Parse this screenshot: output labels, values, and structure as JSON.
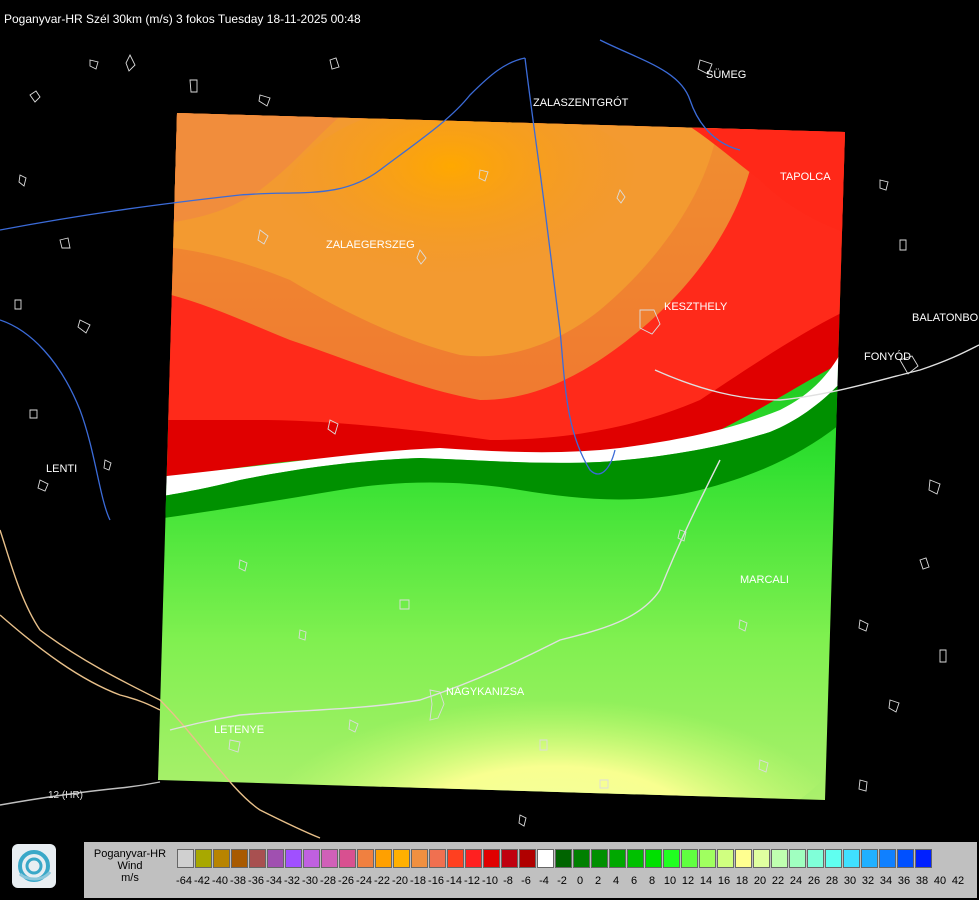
{
  "title": "Poganyvar-HR Szél 30km (m/s) 3 fokos Tuesday 18-11-2025 00:48",
  "cities": [
    {
      "name": "SÜMEG"
    },
    {
      "name": "ZALASZENTGRÓT"
    },
    {
      "name": "TAPOLCA"
    },
    {
      "name": "ZALAEGERSZEG"
    },
    {
      "name": "KESZTHELY"
    },
    {
      "name": "BALATONBO"
    },
    {
      "name": "FONYÓD"
    },
    {
      "name": "LENTI"
    },
    {
      "name": "MARCALI"
    },
    {
      "name": "NAGYKANIZSA"
    },
    {
      "name": "LETENYE"
    }
  ],
  "roads": [
    {
      "label": "12 (HR)"
    }
  ],
  "legend": {
    "line1": "Poganyvar-HR",
    "line2": "Wind",
    "line3": "m/s",
    "colors": [
      "#d0d0d0",
      "#a8a800",
      "#b88400",
      "#a85a00",
      "#a85050",
      "#a050b0",
      "#a050ff",
      "#c060e0",
      "#d060b8",
      "#d85090",
      "#f08040",
      "#ffa000",
      "#ffb000",
      "#f09040",
      "#f07050",
      "#ff4020",
      "#ff2020",
      "#e00000",
      "#c00010",
      "#b00000",
      "#ffffff",
      "#006400",
      "#008000",
      "#009000",
      "#00a800",
      "#00c000",
      "#00e000",
      "#20ff20",
      "#60ff40",
      "#a0ff60",
      "#d0ff80",
      "#ffff90",
      "#e0ffa0",
      "#c0ffb0",
      "#a0ffc0",
      "#80ffd8",
      "#60fff0",
      "#40e0ff",
      "#20b0ff",
      "#1080ff",
      "#0050ff",
      "#0020ff"
    ],
    "ticks": [
      "-64",
      "-42",
      "-40",
      "-38",
      "-36",
      "-34",
      "-32",
      "-30",
      "-28",
      "-26",
      "-24",
      "-22",
      "-20",
      "-18",
      "-16",
      "-14",
      "-12",
      "-10",
      "-8",
      "-6",
      "-4",
      "-2",
      "0",
      "2",
      "4",
      "6",
      "8",
      "10",
      "12",
      "14",
      "16",
      "18",
      "20",
      "22",
      "24",
      "26",
      "28",
      "30",
      "32",
      "34",
      "36",
      "38",
      "40",
      "42"
    ]
  }
}
